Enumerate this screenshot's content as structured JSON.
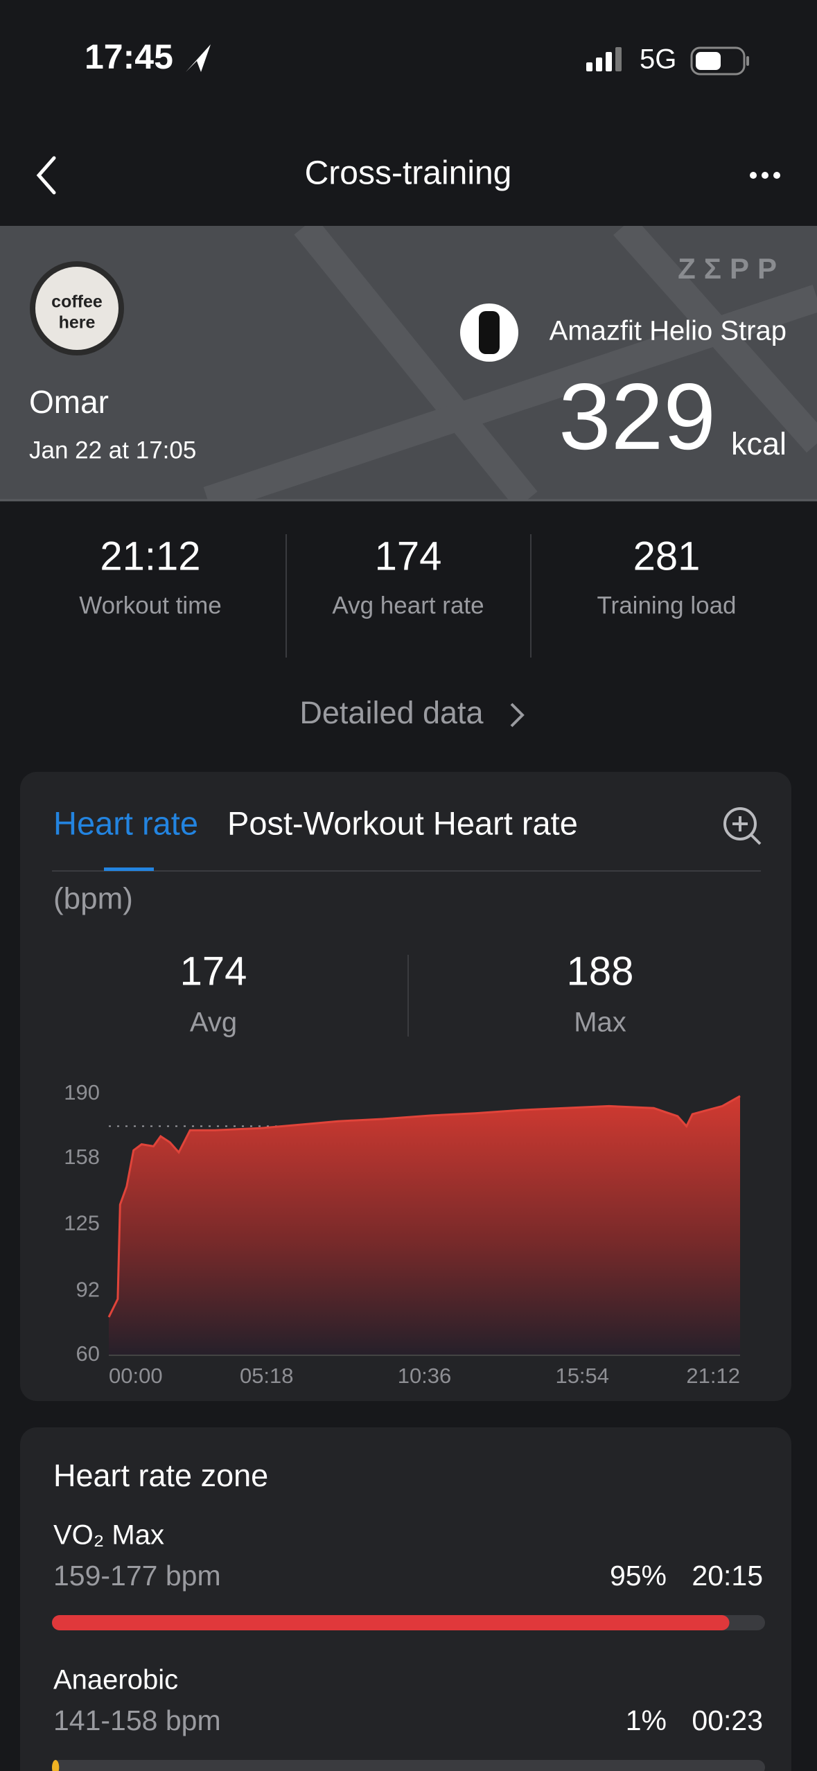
{
  "status_bar": {
    "time": "17:45",
    "network": "5G"
  },
  "header": {
    "title": "Cross-training"
  },
  "summary": {
    "brand": "ZΣPP",
    "avatar_text": [
      "coffee",
      "here"
    ],
    "user": "Omar",
    "date": "Jan 22 at 17:05",
    "device": "Amazfit Helio Strap",
    "calories": 329,
    "calories_unit": "kcal"
  },
  "stats": [
    {
      "value": "21:12",
      "label": "Workout time"
    },
    {
      "value": 174,
      "label": "Avg heart rate"
    },
    {
      "value": 281,
      "label": "Training load"
    }
  ],
  "detailed_link": "Detailed data",
  "tabs": [
    "Heart rate",
    "Post-Workout Heart rate"
  ],
  "unit": "(bpm)",
  "heart_rate": {
    "avg": 174,
    "avg_label": "Avg",
    "max": 188,
    "max_label": "Max"
  },
  "chart_data": {
    "type": "area",
    "color": "#e0443a",
    "x": [
      0,
      0.3,
      0.38,
      0.6,
      0.83,
      1.1,
      1.5,
      1.74,
      2.05,
      2.35,
      2.73,
      3.56,
      5.08,
      6.6,
      7.7,
      9.2,
      10.8,
      12.3,
      13.8,
      15.3,
      16.8,
      18.3,
      19.1,
      19.4,
      19.6,
      20.6,
      21.2
    ],
    "values": [
      79,
      88,
      135,
      144,
      162,
      165,
      164,
      169,
      166,
      161,
      172,
      172,
      173,
      175,
      176.5,
      177.6,
      179.3,
      180.4,
      182,
      183,
      184,
      183,
      179,
      174,
      180,
      184,
      189
    ],
    "xlim": [
      0,
      21.2
    ],
    "xticks": [
      {
        "value": 0,
        "label": "00:00"
      },
      {
        "value": 5.3,
        "label": "05:18"
      },
      {
        "value": 10.6,
        "label": "10:36"
      },
      {
        "value": 15.9,
        "label": "15:54"
      },
      {
        "value": 21.2,
        "label": "21:12"
      }
    ],
    "ylim": [
      60,
      190
    ],
    "yticks": [
      60,
      92,
      125,
      158,
      190
    ],
    "grid": false
  },
  "zones": {
    "title": "Heart rate zone",
    "items": [
      {
        "name": "VO₂ Max",
        "range": "159-177 bpm",
        "percent": 95,
        "percent_label": "95%",
        "time": "20:15"
      },
      {
        "name": "Anaerobic",
        "range": "141-158 bpm",
        "percent": 1,
        "percent_label": "1%",
        "time": "00:23"
      }
    ]
  }
}
